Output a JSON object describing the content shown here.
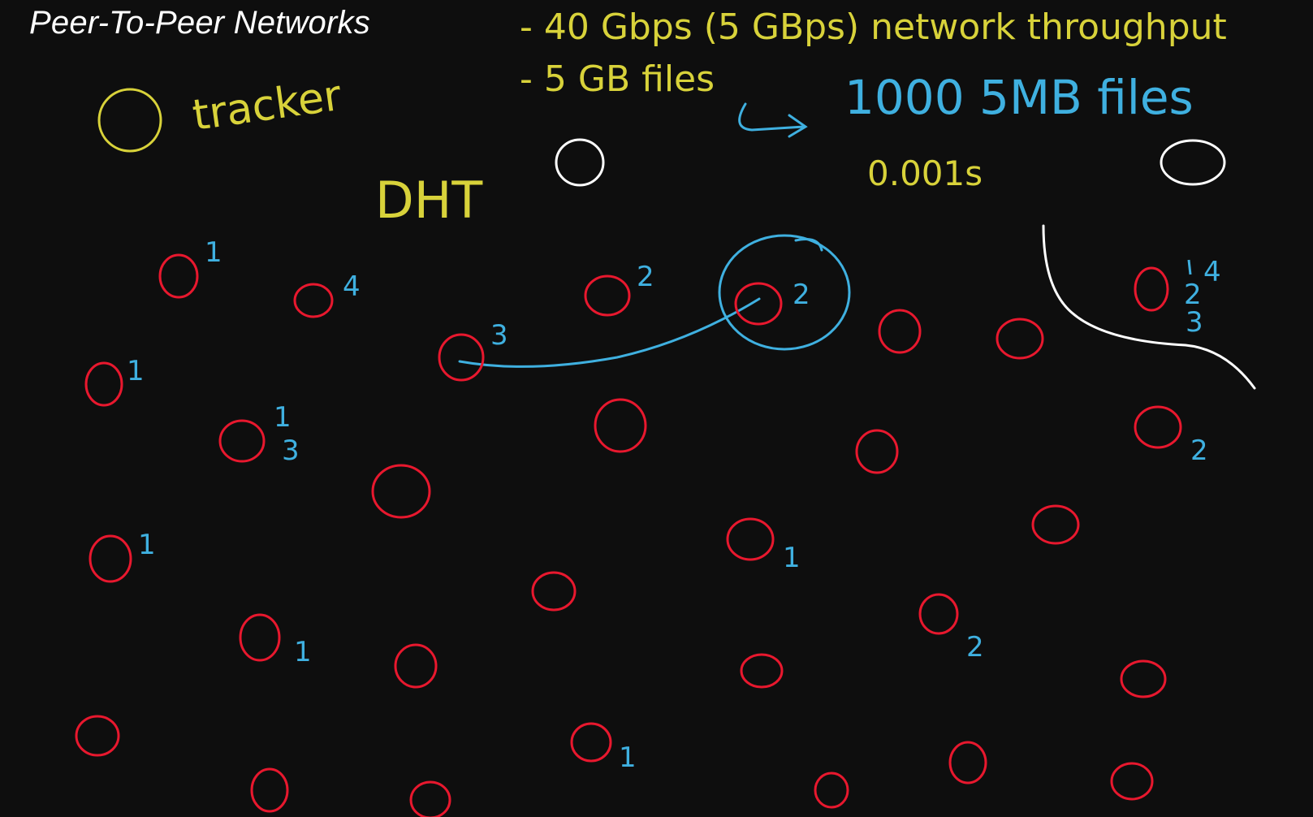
{
  "title": "Peer-To-Peer Networks",
  "notes": {
    "throughput": "- 40 Gbps (5 GBps) network throughput",
    "files": "- 5 GB files",
    "split": "1000 5MB files",
    "time": "0.001s",
    "tracker": "tracker",
    "dht": "DHT"
  },
  "peer_labels": [
    "1",
    "4",
    "2",
    "2",
    "3",
    "1",
    "1",
    "3",
    "1",
    "1",
    "2",
    "1",
    "2",
    "1",
    "4",
    "2",
    "3"
  ],
  "colors": {
    "background": "#0e0e0e",
    "peer": "#e8182e",
    "annotation": "#d8d23a",
    "highlight": "#3fb0e0",
    "ink": "#ffffff"
  },
  "icons": [
    "tracker-circle-icon",
    "peer-circle-icon",
    "arrow-icon"
  ]
}
